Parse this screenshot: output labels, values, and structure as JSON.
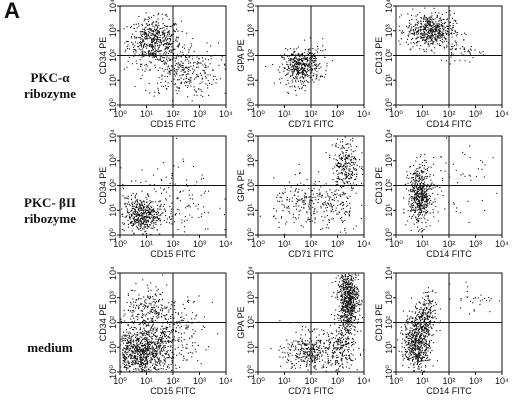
{
  "panel_letter": "A",
  "row_labels": [
    "PKC-α\nribozyme",
    "PKC- βII\nribozyme",
    "medium"
  ],
  "chart_data": [
    {
      "type": "scatter",
      "row": 0,
      "col": 0,
      "xlabel": "CD15 FITC",
      "ylabel": "CD34 PE",
      "scale": "log",
      "xlim": [
        1,
        10000
      ],
      "ylim": [
        1,
        10000
      ],
      "quadrant_lines": {
        "x": 100,
        "y": 100
      },
      "tick_labels": {
        "x": [
          "10⁰",
          "10¹",
          "10²",
          "10³",
          "10⁴"
        ],
        "y": [
          "10⁰",
          "10¹",
          "10²",
          "10³",
          "10⁴"
        ]
      },
      "clusters": [
        {
          "cx": 1.3,
          "cy": 2.6,
          "sx": 0.5,
          "sy": 0.45,
          "n": 520
        },
        {
          "cx": 2.3,
          "cy": 1.4,
          "sx": 0.7,
          "sy": 0.55,
          "n": 320
        }
      ]
    },
    {
      "type": "scatter",
      "row": 0,
      "col": 1,
      "xlabel": "CD71 FITC",
      "ylabel": "GPA PE",
      "scale": "log",
      "xlim": [
        1,
        10000
      ],
      "ylim": [
        1,
        10000
      ],
      "quadrant_lines": {
        "x": 100,
        "y": 100
      },
      "tick_labels": {
        "x": [
          "10⁰",
          "10¹",
          "10²",
          "10³",
          "10⁴"
        ],
        "y": [
          "10⁰",
          "10¹",
          "10²",
          "10³",
          "10⁴"
        ]
      },
      "clusters": [
        {
          "cx": 1.6,
          "cy": 1.5,
          "sx": 0.35,
          "sy": 0.35,
          "n": 380
        },
        {
          "cx": 2.1,
          "cy": 1.9,
          "sx": 0.3,
          "sy": 0.3,
          "n": 60
        }
      ]
    },
    {
      "type": "scatter",
      "row": 0,
      "col": 2,
      "xlabel": "CD14 FITC",
      "ylabel": "CD13 PE",
      "scale": "log",
      "xlim": [
        1,
        10000
      ],
      "ylim": [
        1,
        10000
      ],
      "quadrant_lines": {
        "x": 100,
        "y": 100
      },
      "tick_labels": {
        "x": [
          "10⁰",
          "10¹",
          "10²",
          "10³",
          "10⁴"
        ],
        "y": [
          "10⁰",
          "10¹",
          "10²",
          "10³",
          "10⁴"
        ]
      },
      "clusters": [
        {
          "cx": 1.3,
          "cy": 3.0,
          "sx": 0.45,
          "sy": 0.35,
          "n": 520
        },
        {
          "cx": 2.5,
          "cy": 2.2,
          "sx": 0.45,
          "sy": 0.25,
          "n": 50
        }
      ]
    },
    {
      "type": "scatter",
      "row": 1,
      "col": 0,
      "xlabel": "CD15 FITC",
      "ylabel": "CD34 PE",
      "scale": "log",
      "xlim": [
        1,
        10000
      ],
      "ylim": [
        1,
        10000
      ],
      "quadrant_lines": {
        "x": 100,
        "y": 100
      },
      "tick_labels": {
        "x": [
          "10⁰",
          "10¹",
          "10²",
          "10³",
          "10⁴"
        ],
        "y": [
          "10⁰",
          "10¹",
          "10²",
          "10³",
          "10⁴"
        ]
      },
      "clusters": [
        {
          "cx": 0.8,
          "cy": 0.8,
          "sx": 0.35,
          "sy": 0.35,
          "n": 420
        },
        {
          "cx": 1.8,
          "cy": 1.4,
          "sx": 0.9,
          "sy": 0.7,
          "n": 160
        }
      ]
    },
    {
      "type": "scatter",
      "row": 1,
      "col": 1,
      "xlabel": "CD71 FITC",
      "ylabel": "GPA PE",
      "scale": "log",
      "xlim": [
        1,
        10000
      ],
      "ylim": [
        1,
        10000
      ],
      "quadrant_lines": {
        "x": 100,
        "y": 100
      },
      "tick_labels": {
        "x": [
          "10⁰",
          "10¹",
          "10²",
          "10³",
          "10⁴"
        ],
        "y": [
          "10⁰",
          "10¹",
          "10²",
          "10³",
          "10⁴"
        ]
      },
      "clusters": [
        {
          "cx": 3.3,
          "cy": 2.8,
          "sx": 0.25,
          "sy": 0.6,
          "n": 260
        },
        {
          "cx": 1.8,
          "cy": 1.2,
          "sx": 0.6,
          "sy": 0.5,
          "n": 200
        },
        {
          "cx": 3.0,
          "cy": 1.0,
          "sx": 0.4,
          "sy": 0.5,
          "n": 90
        }
      ]
    },
    {
      "type": "scatter",
      "row": 1,
      "col": 2,
      "xlabel": "CD14 FITC",
      "ylabel": "CD13 PE",
      "scale": "log",
      "xlim": [
        1,
        10000
      ],
      "ylim": [
        1,
        10000
      ],
      "quadrant_lines": {
        "x": 100,
        "y": 100
      },
      "tick_labels": {
        "x": [
          "10⁰",
          "10¹",
          "10²",
          "10³",
          "10⁴"
        ],
        "y": [
          "10⁰",
          "10¹",
          "10²",
          "10³",
          "10⁴"
        ]
      },
      "clusters": [
        {
          "cx": 0.9,
          "cy": 1.6,
          "sx": 0.22,
          "sy": 0.6,
          "n": 520
        },
        {
          "cx": 2.3,
          "cy": 2.2,
          "sx": 0.8,
          "sy": 0.7,
          "n": 60
        }
      ]
    },
    {
      "type": "scatter",
      "row": 2,
      "col": 0,
      "xlabel": "CD15 FITC",
      "ylabel": "CD34 PE",
      "scale": "log",
      "xlim": [
        1,
        10000
      ],
      "ylim": [
        1,
        10000
      ],
      "quadrant_lines": {
        "x": 100,
        "y": 100
      },
      "tick_labels": {
        "x": [
          "10⁰",
          "10¹",
          "10²",
          "10³",
          "10⁴"
        ],
        "y": [
          "10⁰",
          "10¹",
          "10²",
          "10³",
          "10⁴"
        ]
      },
      "clusters": [
        {
          "cx": 0.8,
          "cy": 0.7,
          "sx": 0.5,
          "sy": 0.45,
          "n": 700
        },
        {
          "cx": 1.5,
          "cy": 1.6,
          "sx": 0.8,
          "sy": 0.7,
          "n": 500
        },
        {
          "cx": 1.0,
          "cy": 2.6,
          "sx": 0.5,
          "sy": 0.4,
          "n": 120
        }
      ]
    },
    {
      "type": "scatter",
      "row": 2,
      "col": 1,
      "xlabel": "CD71 FITC",
      "ylabel": "GPA PE",
      "scale": "log",
      "xlim": [
        1,
        10000
      ],
      "ylim": [
        1,
        10000
      ],
      "quadrant_lines": {
        "x": 100,
        "y": 100
      },
      "tick_labels": {
        "x": [
          "10⁰",
          "10¹",
          "10²",
          "10³",
          "10⁴"
        ],
        "y": [
          "10⁰",
          "10¹",
          "10²",
          "10³",
          "10⁴"
        ]
      },
      "clusters": [
        {
          "cx": 3.4,
          "cy": 2.9,
          "sx": 0.2,
          "sy": 0.6,
          "n": 650
        },
        {
          "cx": 2.0,
          "cy": 0.8,
          "sx": 0.5,
          "sy": 0.4,
          "n": 350
        },
        {
          "cx": 3.2,
          "cy": 1.0,
          "sx": 0.3,
          "sy": 0.5,
          "n": 200
        }
      ]
    },
    {
      "type": "scatter",
      "row": 2,
      "col": 2,
      "xlabel": "CD14 FITC",
      "ylabel": "CD13 PE",
      "scale": "log",
      "xlim": [
        1,
        10000
      ],
      "ylim": [
        1,
        10000
      ],
      "quadrant_lines": {
        "x": 100,
        "y": 100
      },
      "tick_labels": {
        "x": [
          "10⁰",
          "10¹",
          "10²",
          "10³",
          "10⁴"
        ],
        "y": [
          "10⁰",
          "10¹",
          "10²",
          "10³",
          "10⁴"
        ]
      },
      "clusters": [
        {
          "cx": 0.8,
          "cy": 1.2,
          "sx": 0.25,
          "sy": 0.55,
          "n": 560
        },
        {
          "cx": 1.1,
          "cy": 2.2,
          "sx": 0.2,
          "sy": 0.5,
          "n": 200
        },
        {
          "cx": 3.0,
          "cy": 3.0,
          "sx": 0.4,
          "sy": 0.3,
          "n": 30
        }
      ]
    }
  ]
}
